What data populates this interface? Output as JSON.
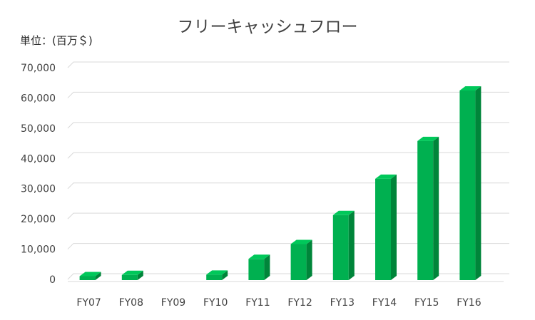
{
  "chart_data": {
    "type": "bar",
    "title": "フリーキャッシュフロー",
    "unit_label": "単位：(百万＄)",
    "categories": [
      "FY07",
      "FY08",
      "FY09",
      "FY10",
      "FY11",
      "FY12",
      "FY13",
      "FY14",
      "FY15",
      "FY16"
    ],
    "values": [
      1300,
      1700,
      0,
      1800,
      7000,
      11900,
      21500,
      33500,
      46000,
      62700
    ],
    "ylim": [
      0,
      70000
    ],
    "yticks": [
      "0",
      "10,000",
      "20,000",
      "30,000",
      "40,000",
      "50,000",
      "60,000",
      "70,000"
    ],
    "grid": true,
    "legend": "none",
    "colors": {
      "front": "#00b050",
      "side": "#00853a",
      "top": "#00c85a",
      "grid": "#d9d9d9"
    }
  }
}
